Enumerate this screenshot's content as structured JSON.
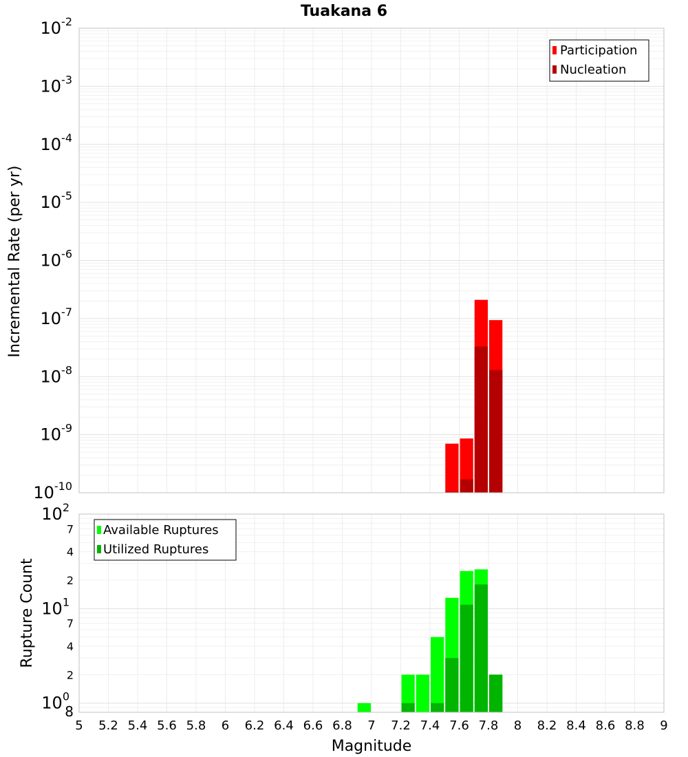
{
  "chart_data": [
    {
      "type": "bar",
      "title": "Tuakana 6",
      "xlabel": "",
      "ylabel": "Incremental Rate (per yr)",
      "yscale": "log",
      "xlim": [
        5,
        9
      ],
      "ylim": [
        1e-10,
        0.01
      ],
      "y_ticks": [
        {
          "base": "10",
          "exp": "-10"
        },
        {
          "base": "10",
          "exp": "-9"
        },
        {
          "base": "10",
          "exp": "-8"
        },
        {
          "base": "10",
          "exp": "-7"
        },
        {
          "base": "10",
          "exp": "-6"
        },
        {
          "base": "10",
          "exp": "-5"
        },
        {
          "base": "10",
          "exp": "-4"
        },
        {
          "base": "10",
          "exp": "-3"
        },
        {
          "base": "10",
          "exp": "-2"
        }
      ],
      "bar_width": 0.1,
      "legend": {
        "position": "top-right",
        "entries": [
          "Participation",
          "Nucleation"
        ]
      },
      "colors": {
        "Participation": "#ff0000",
        "Nucleation": "#b40000"
      },
      "series": [
        {
          "name": "Participation",
          "x": [
            7.55,
            7.65,
            7.75,
            7.85
          ],
          "values": [
            7e-10,
            8.6e-10,
            2.1e-07,
            9.4e-08
          ]
        },
        {
          "name": "Nucleation",
          "x": [
            7.55,
            7.65,
            7.75,
            7.85
          ],
          "values": [
            1.05e-10,
            1.7e-10,
            3.3e-08,
            1.3e-08
          ]
        }
      ],
      "grid": true
    },
    {
      "type": "bar",
      "title": "",
      "xlabel": "Magnitude",
      "ylabel": "Rupture Count",
      "yscale": "log",
      "xlim": [
        5,
        9
      ],
      "ylim": [
        0.8,
        100
      ],
      "x_ticks": [
        "5",
        "5.2",
        "5.4",
        "5.6",
        "5.8",
        "6",
        "6.2",
        "6.4",
        "6.6",
        "6.8",
        "7",
        "7.2",
        "7.4",
        "7.6",
        "7.8",
        "8",
        "8.2",
        "8.4",
        "8.6",
        "8.8",
        "9"
      ],
      "y_major_ticks": [
        {
          "value": 1,
          "base": "10",
          "exp": "0"
        },
        {
          "value": 10,
          "base": "10",
          "exp": "1"
        },
        {
          "value": 100,
          "base": "10",
          "exp": "2"
        }
      ],
      "y_minor_ticks": [
        {
          "value": 0.8,
          "label": "8"
        },
        {
          "value": 2,
          "label": "2"
        },
        {
          "value": 4,
          "label": "4"
        },
        {
          "value": 7,
          "label": "7"
        },
        {
          "value": 20,
          "label": "2"
        },
        {
          "value": 40,
          "label": "4"
        },
        {
          "value": 70,
          "label": "7"
        }
      ],
      "bar_width": 0.1,
      "legend": {
        "position": "top-left",
        "entries": [
          "Available Ruptures",
          "Utilized Ruptures"
        ]
      },
      "colors": {
        "Available Ruptures": "#00ff00",
        "Utilized Ruptures": "#00b400"
      },
      "series": [
        {
          "name": "Available Ruptures",
          "x": [
            6.95,
            7.25,
            7.35,
            7.45,
            7.55,
            7.65,
            7.75,
            7.85
          ],
          "values": [
            1,
            2,
            2,
            5,
            13,
            25,
            26,
            2
          ]
        },
        {
          "name": "Utilized Ruptures",
          "x": [
            7.25,
            7.45,
            7.55,
            7.65,
            7.75,
            7.85
          ],
          "values": [
            1,
            1,
            3,
            11,
            18,
            2
          ]
        }
      ],
      "grid": true
    }
  ]
}
